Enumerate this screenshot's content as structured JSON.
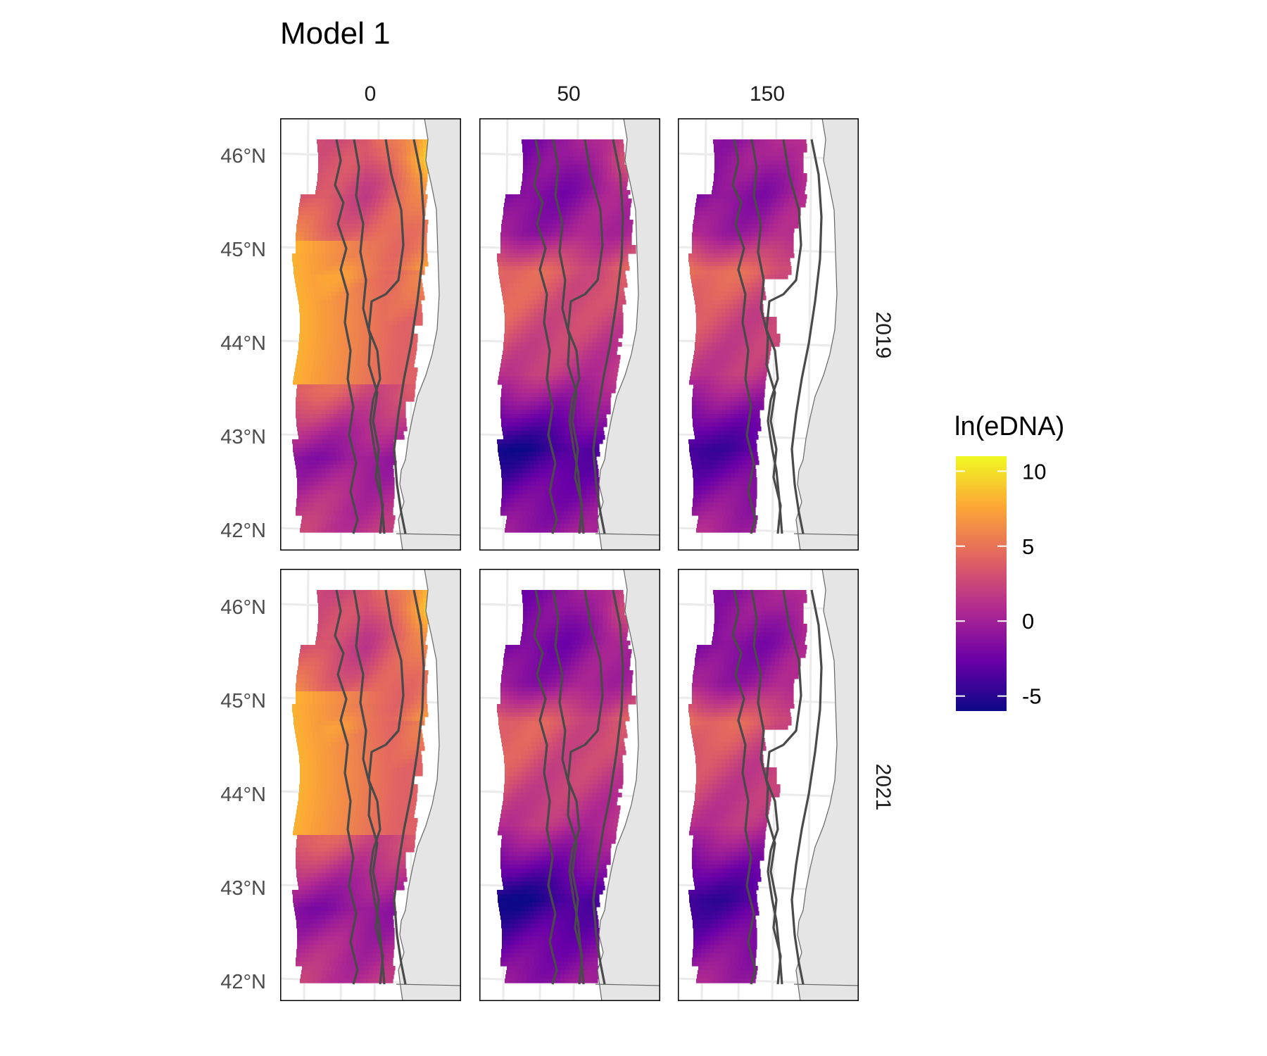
{
  "title": "Model 1",
  "column_labels": [
    "0",
    "50",
    "150"
  ],
  "row_labels": [
    "2019",
    "2021"
  ],
  "lat_labels": [
    "46°N",
    "45°N",
    "44°N",
    "43°N",
    "42°N"
  ],
  "legend": {
    "title": "ln(eDNA)",
    "ticks": [
      "10",
      "5",
      "0",
      "-5"
    ],
    "range": [
      -6,
      11
    ],
    "colors": [
      "#0d0887",
      "#6a00a8",
      "#b12a90",
      "#e16462",
      "#fca636",
      "#f0f921"
    ]
  },
  "map_colors": {
    "land": "#e5e5e5",
    "coast": "#555555",
    "isobath": "#4a4a4a",
    "grid": "#ebebeb",
    "panel_border": "#000000"
  },
  "chart_data": {
    "type": "heatmap",
    "title": "Model 1",
    "facet_columns": [
      "0",
      "50",
      "150"
    ],
    "facet_rows": [
      "2019",
      "2021"
    ],
    "y_ticks": [
      "42°N",
      "43°N",
      "44°N",
      "45°N",
      "46°N"
    ],
    "ylim": [
      42,
      46.15
    ],
    "legend_title": "ln(eDNA)",
    "color_scale": "plasma",
    "value_range": [
      -6,
      11
    ],
    "value_ticks": [
      -5,
      0,
      5,
      10
    ],
    "approx_values": [
      {
        "depth": "0",
        "year": "2019",
        "lat_46": 3,
        "lat_45": 8,
        "lat_44": 5,
        "lat_43": 1,
        "lat_42": 2
      },
      {
        "depth": "50",
        "year": "2019",
        "lat_46": -1,
        "lat_45": 5,
        "lat_44": 2,
        "lat_43": -4,
        "lat_42": 0
      },
      {
        "depth": "150",
        "year": "2019",
        "lat_46": 0,
        "lat_45": 5,
        "lat_44": 2,
        "lat_43": -3,
        "lat_42": 1
      },
      {
        "depth": "0",
        "year": "2021",
        "lat_46": 3,
        "lat_45": 8,
        "lat_44": 5,
        "lat_43": 0,
        "lat_42": 2
      },
      {
        "depth": "50",
        "year": "2021",
        "lat_46": -1,
        "lat_45": 5,
        "lat_44": 2,
        "lat_43": -4,
        "lat_42": 0
      },
      {
        "depth": "150",
        "year": "2021",
        "lat_46": 0,
        "lat_45": 5,
        "lat_44": 2,
        "lat_43": -3,
        "lat_42": 1
      }
    ]
  }
}
